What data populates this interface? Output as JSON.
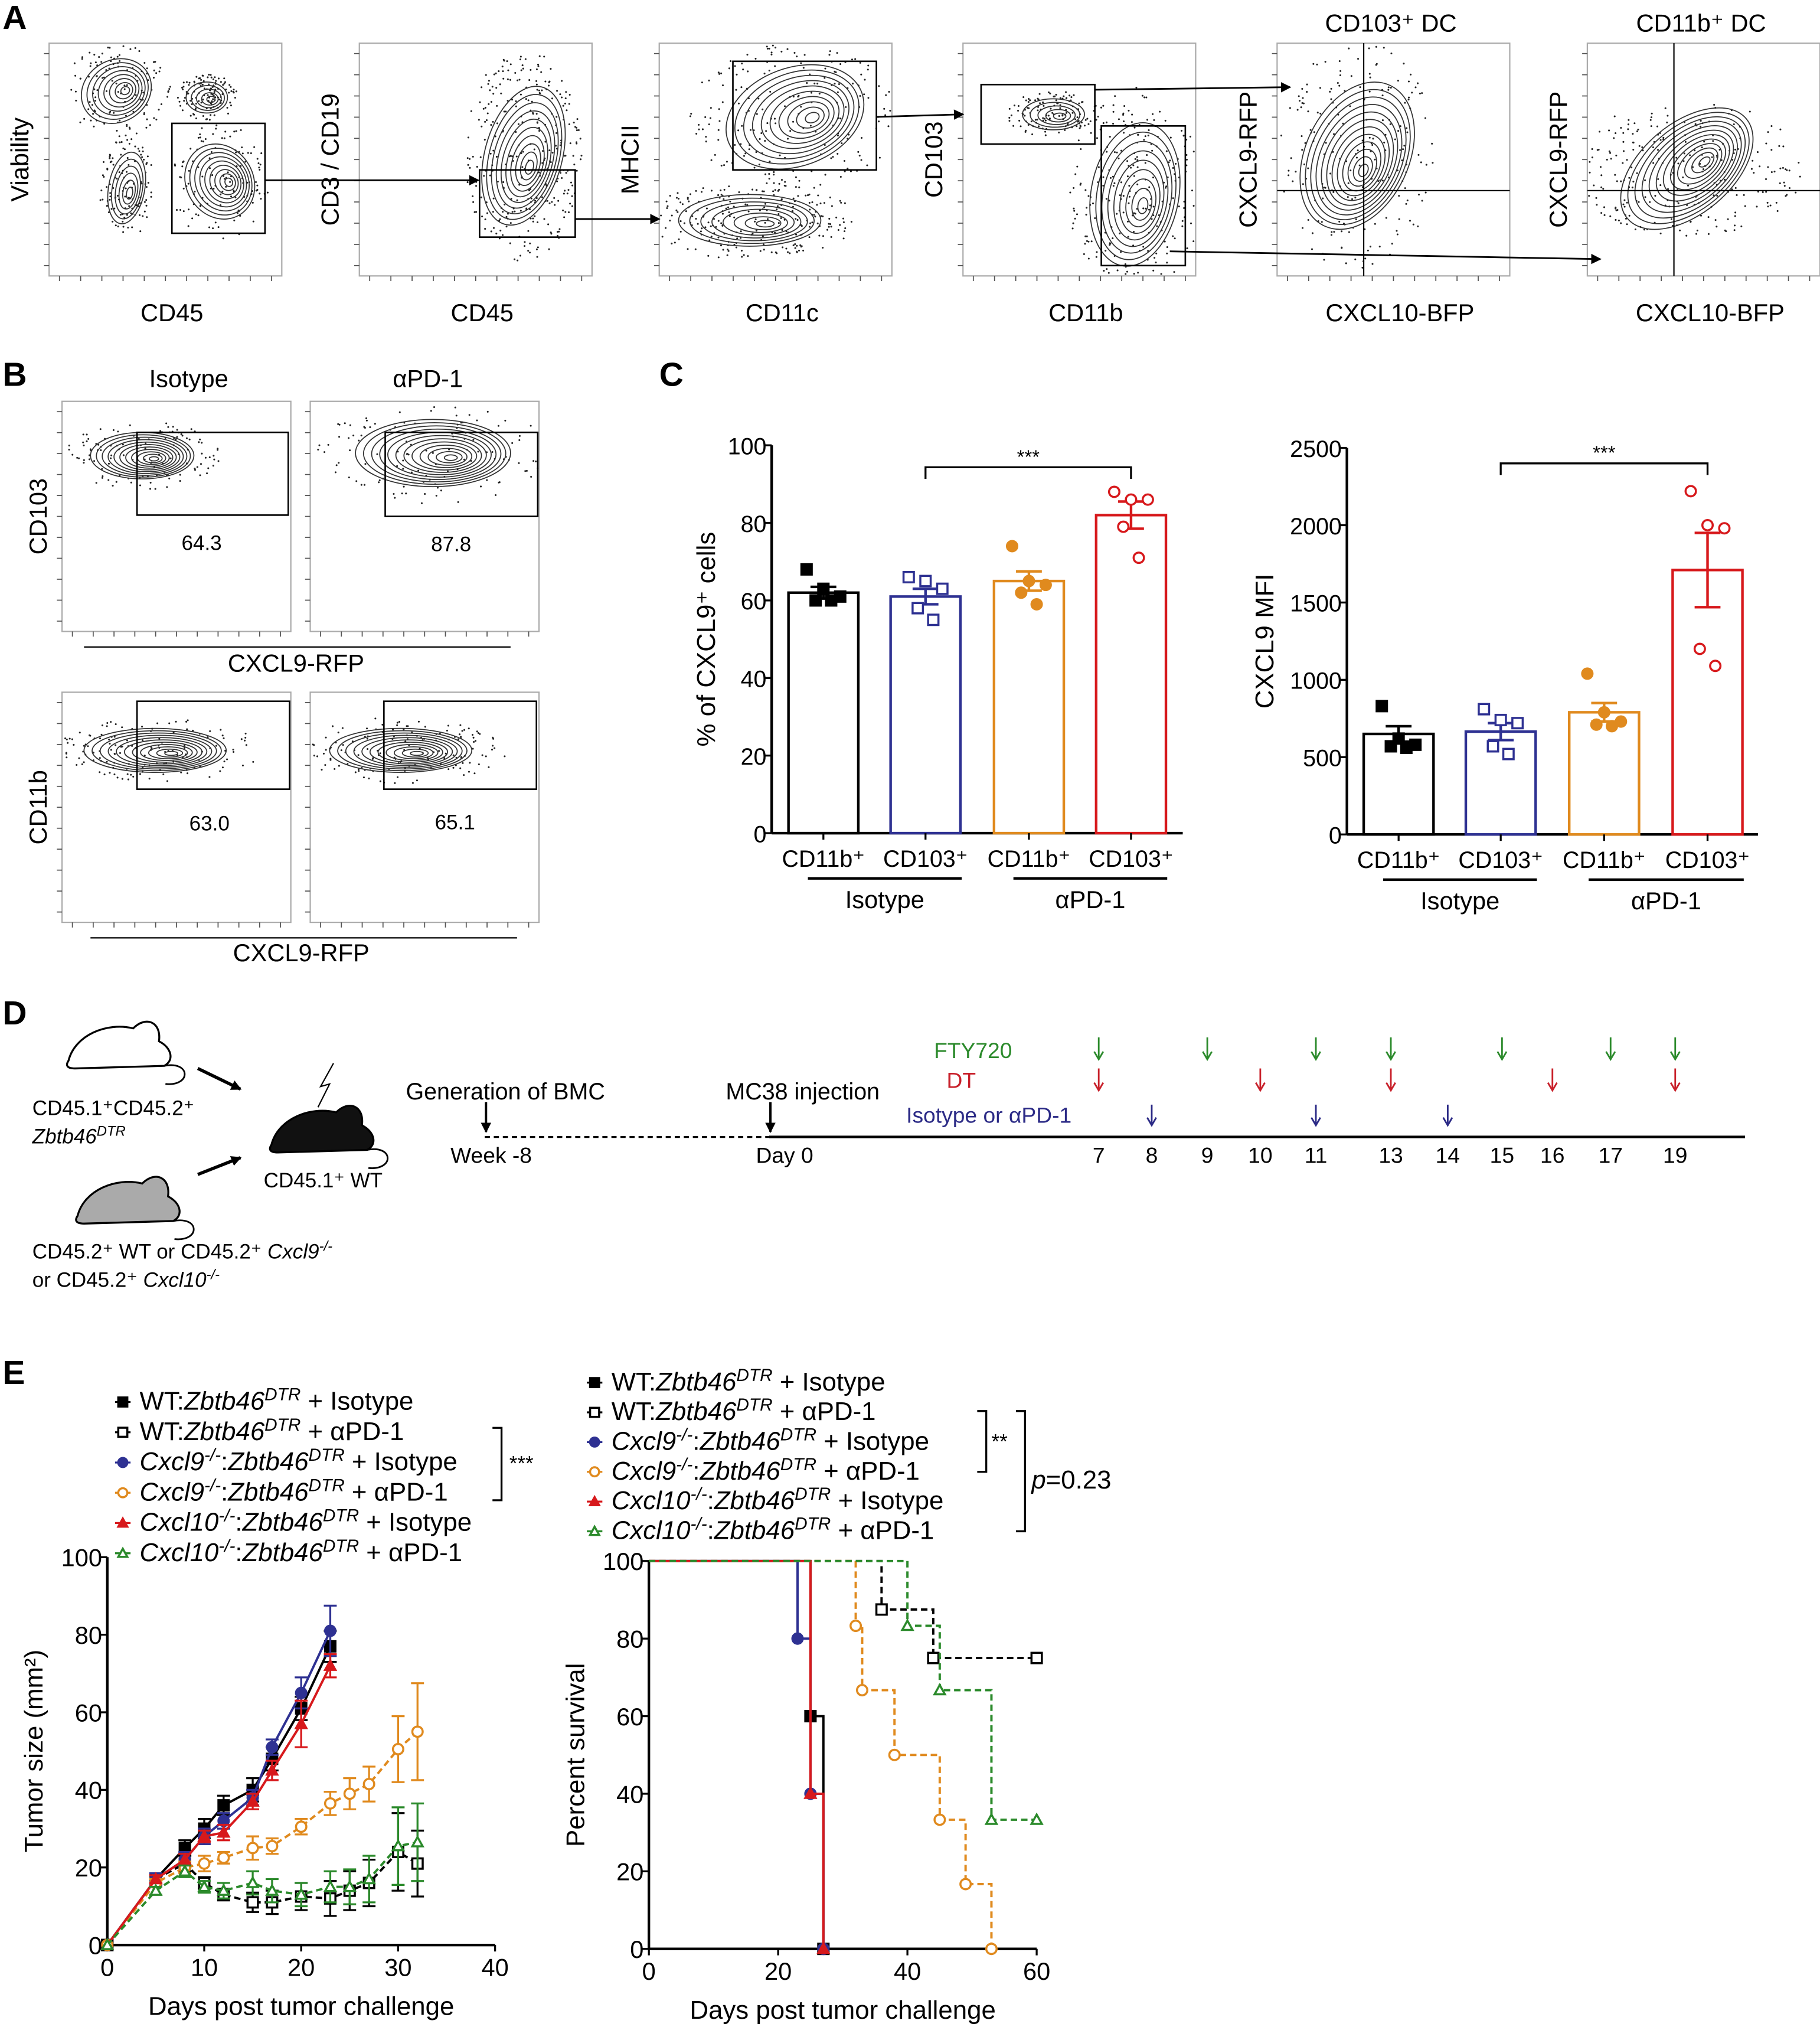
{
  "panel_labels": {
    "a": "A",
    "b": "B",
    "c": "C",
    "d": "D",
    "e": "E"
  },
  "panel_a": {
    "plots": [
      {
        "title": "",
        "ylabel": "Viability",
        "xlabel": "CD45"
      },
      {
        "title": "",
        "ylabel": "CD3 / CD19",
        "xlabel": "CD45"
      },
      {
        "title": "",
        "ylabel": "MHCII",
        "xlabel": "CD11c"
      },
      {
        "title": "",
        "ylabel": "CD103",
        "xlabel": "CD11b"
      },
      {
        "title": "CD103⁺ DC",
        "ylabel": "CXCL9-RFP",
        "xlabel": "CXCL10-BFP"
      },
      {
        "title": "CD11b⁺ DC",
        "ylabel": "CXCL9-RFP",
        "xlabel": "CXCL10-BFP"
      }
    ]
  },
  "panel_b": {
    "col_titles": [
      "Isotype",
      "αPD-1"
    ],
    "rows": [
      {
        "ylabel": "CD103",
        "xlabel": "CXCL9-RFP",
        "gate_percents": [
          "64.3",
          "87.8"
        ]
      },
      {
        "ylabel": "CD11b",
        "xlabel": "CXCL9-RFP",
        "gate_percents": [
          "63.0",
          "65.1"
        ]
      }
    ]
  },
  "panel_d": {
    "donor1": [
      {
        "t": "CD45.1⁺CD45.2⁺",
        "style": ""
      }
    ],
    "donor1_genotype": [
      {
        "t": "Zbtb46",
        "style": "i"
      },
      {
        "t": "DTR",
        "style": "sup"
      }
    ],
    "recipient": [
      {
        "t": "CD45.1⁺ WT",
        "style": ""
      }
    ],
    "donor2_line1": [
      {
        "t": "CD45.2⁺ WT or CD45.2⁺ ",
        "style": ""
      },
      {
        "t": "Cxcl9",
        "style": "i"
      },
      {
        "t": "-/-",
        "style": "sup"
      }
    ],
    "donor2_line2": [
      {
        "t": "or CD45.2⁺ ",
        "style": ""
      },
      {
        "t": "Cxcl10",
        "style": "i"
      },
      {
        "t": "-/-",
        "style": "sup"
      }
    ],
    "events": [
      {
        "label": "Generation of BMC",
        "tick": "Week -8"
      },
      {
        "label": "MC38 injection",
        "tick": "Day 0"
      }
    ],
    "days": [
      "7",
      "8",
      "9",
      "10",
      "11",
      "13",
      "14",
      "15",
      "16",
      "17",
      "19"
    ],
    "treatments": [
      {
        "label": "FTY720",
        "color": "#2b8a2b",
        "days": [
          7,
          9,
          11,
          13,
          15,
          17,
          19
        ]
      },
      {
        "label": "DT",
        "color": "#c8202a",
        "days": [
          7,
          10,
          13,
          16,
          19
        ]
      },
      {
        "label": "Isotype or αPD-1",
        "color": "#2b2a86",
        "days": [
          8,
          11,
          14
        ]
      }
    ]
  },
  "chart_data": [
    {
      "panel": "C",
      "type": "bar",
      "title": "",
      "ylabel": "% of CXCL9⁺ cells",
      "ylim": [
        0,
        100
      ],
      "yticks": [
        "0",
        "20",
        "40",
        "60",
        "80",
        "100"
      ],
      "categories": [
        "CD11b⁺",
        "CD103⁺",
        "CD11b⁺",
        "CD103⁺"
      ],
      "groups": [
        "Isotype",
        "αPD-1"
      ],
      "values": [
        62,
        61,
        65,
        82
      ],
      "sem": [
        1.5,
        2,
        2.5,
        3.5
      ],
      "points": [
        [
          68,
          63,
          61,
          60,
          60
        ],
        [
          66,
          65,
          63,
          58,
          55
        ],
        [
          74,
          65,
          64,
          62,
          59
        ],
        [
          88,
          86,
          86,
          79,
          71
        ]
      ],
      "colors": [
        "#000000",
        "#2e3192",
        "#e08a1e",
        "#d7191c"
      ],
      "markers": [
        "square-filled",
        "square-open",
        "circle-filled",
        "circle-open"
      ],
      "significance": {
        "from": 1,
        "to": 3,
        "label": "***"
      }
    },
    {
      "panel": "C",
      "type": "bar",
      "title": "",
      "ylabel": "CXCL9 MFI",
      "ylim": [
        0,
        2500
      ],
      "yticks": [
        "0",
        "500",
        "1000",
        "1500",
        "2000",
        "2500"
      ],
      "categories": [
        "CD11b⁺",
        "CD103⁺",
        "CD11b⁺",
        "CD103⁺"
      ],
      "groups": [
        "Isotype",
        "αPD-1"
      ],
      "values": [
        650,
        665,
        790,
        1710
      ],
      "sem": [
        50,
        55,
        60,
        240
      ],
      "points": [
        [
          830,
          620,
          580,
          570,
          560
        ],
        [
          810,
          740,
          720,
          570,
          520
        ],
        [
          1040,
          790,
          730,
          710,
          700
        ],
        [
          2220,
          2000,
          1980,
          1200,
          1090
        ]
      ],
      "colors": [
        "#000000",
        "#2e3192",
        "#e08a1e",
        "#d7191c"
      ],
      "markers": [
        "square-filled",
        "square-open",
        "circle-filled",
        "circle-open"
      ],
      "significance": {
        "from": 1,
        "to": 3,
        "label": "***"
      }
    },
    {
      "panel": "E",
      "type": "line",
      "title": "",
      "xlabel": "Days post tumor challenge",
      "ylabel": "Tumor size (mm²)",
      "xlim": [
        0,
        40
      ],
      "ylim": [
        0,
        100
      ],
      "xticks": [
        "0",
        "10",
        "20",
        "30",
        "40"
      ],
      "yticks": [
        "0",
        "20",
        "40",
        "60",
        "80",
        "100"
      ],
      "significance": {
        "label": "***",
        "from_series": 1,
        "to_series": 3
      },
      "series": [
        {
          "name": [
            {
              "t": "WT:",
              "style": ""
            },
            {
              "t": "Zbtb46",
              "style": "i"
            },
            {
              "t": "DTR",
              "style": "sup"
            },
            {
              "t": " + Isotype",
              "style": ""
            }
          ],
          "color": "#000000",
          "marker": "square-filled",
          "dashed": false,
          "x": [
            0,
            5,
            8,
            10,
            12,
            15,
            17,
            20,
            23
          ],
          "y": [
            0,
            17,
            25,
            30,
            36,
            40,
            48,
            61,
            77
          ],
          "sem": [
            0,
            1,
            2,
            2.5,
            2.5,
            3,
            3,
            3,
            4
          ]
        },
        {
          "name": [
            {
              "t": "WT:",
              "style": ""
            },
            {
              "t": "Zbtb46",
              "style": "i"
            },
            {
              "t": "DTR",
              "style": "sup"
            },
            {
              "t": " + αPD-1",
              "style": ""
            }
          ],
          "color": "#000000",
          "marker": "square-open",
          "dashed": true,
          "x": [
            0,
            5,
            8,
            10,
            12,
            15,
            17,
            20,
            23,
            25,
            27,
            30,
            32
          ],
          "y": [
            0,
            17,
            21,
            16,
            13,
            11,
            11,
            12.5,
            12,
            14,
            16,
            24,
            21
          ],
          "sem": [
            0,
            1,
            2,
            1.5,
            1.5,
            2.5,
            3,
            3.5,
            4.5,
            5,
            6,
            10,
            8.5
          ]
        },
        {
          "name": [
            {
              "t": "Cxcl9",
              "style": "i"
            },
            {
              "t": "-/-",
              "style": "sup"
            },
            {
              "t": ":",
              "style": ""
            },
            {
              "t": "Zbtb46",
              "style": "i"
            },
            {
              "t": "DTR",
              "style": "sup"
            },
            {
              "t": " + Isotype",
              "style": ""
            }
          ],
          "color": "#2e3192",
          "marker": "circle-filled",
          "dashed": false,
          "x": [
            0,
            5,
            8,
            10,
            12,
            15,
            17,
            20,
            23
          ],
          "y": [
            0,
            17,
            22,
            28,
            32,
            38,
            51,
            65,
            81
          ],
          "sem": [
            0,
            1.5,
            2,
            2,
            2,
            2,
            2,
            4,
            6.5
          ]
        },
        {
          "name": [
            {
              "t": "Cxcl9",
              "style": "i"
            },
            {
              "t": "-/-",
              "style": "sup"
            },
            {
              "t": ":",
              "style": ""
            },
            {
              "t": "Zbtb46",
              "style": "i"
            },
            {
              "t": "DTR",
              "style": "sup"
            },
            {
              "t": " + αPD-1",
              "style": ""
            }
          ],
          "color": "#e08a1e",
          "marker": "circle-open",
          "dashed": true,
          "x": [
            0,
            5,
            8,
            10,
            12,
            15,
            17,
            20,
            23,
            25,
            27,
            30,
            32
          ],
          "y": [
            0,
            16,
            20,
            21,
            22.5,
            25,
            25.5,
            30.5,
            36.5,
            39,
            41.5,
            50.5,
            55
          ],
          "sem": [
            0,
            1,
            1.5,
            2,
            1.5,
            3,
            2,
            2,
            3,
            4,
            4.5,
            8.5,
            12.5
          ]
        },
        {
          "name": [
            {
              "t": "Cxcl10",
              "style": "i"
            },
            {
              "t": "-/-",
              "style": "sup"
            },
            {
              "t": ":",
              "style": ""
            },
            {
              "t": "Zbtb46",
              "style": "i"
            },
            {
              "t": "DTR",
              "style": "sup"
            },
            {
              "t": " + Isotype",
              "style": ""
            }
          ],
          "color": "#d7191c",
          "marker": "triangle-filled",
          "dashed": false,
          "x": [
            0,
            5,
            8,
            10,
            12,
            15,
            17,
            20,
            23
          ],
          "y": [
            0,
            17,
            22,
            28,
            29,
            37,
            45,
            57,
            72
          ],
          "sem": [
            0,
            1,
            1.5,
            1.5,
            2,
            2,
            2.5,
            6,
            3
          ]
        },
        {
          "name": [
            {
              "t": "Cxcl10",
              "style": "i"
            },
            {
              "t": "-/-",
              "style": "sup"
            },
            {
              "t": ":",
              "style": ""
            },
            {
              "t": "Zbtb46",
              "style": "i"
            },
            {
              "t": "DTR",
              "style": "sup"
            },
            {
              "t": " + αPD-1",
              "style": ""
            }
          ],
          "color": "#2b8a2b",
          "marker": "triangle-open",
          "dashed": true,
          "x": [
            0,
            5,
            8,
            10,
            12,
            15,
            17,
            20,
            23,
            25,
            27,
            30,
            32
          ],
          "y": [
            0,
            14,
            19,
            15,
            14,
            16,
            14,
            13,
            15,
            15,
            17,
            25.5,
            26.5
          ],
          "sem": [
            0,
            1,
            1.5,
            1.5,
            2,
            3,
            3,
            3,
            4,
            4.5,
            6,
            10,
            10
          ]
        }
      ]
    },
    {
      "panel": "E",
      "type": "line",
      "subtype": "survival-step",
      "title": "",
      "xlabel": "Days post tumor challenge",
      "ylabel": "Percent survival",
      "xlim": [
        0,
        60
      ],
      "ylim": [
        0,
        100
      ],
      "xticks": [
        "0",
        "20",
        "40",
        "60"
      ],
      "yticks": [
        "0",
        "20",
        "40",
        "60",
        "80",
        "100"
      ],
      "significance": [
        {
          "label": [
            {
              "t": "**",
              "style": ""
            }
          ],
          "from_series": 1,
          "to_series": 3
        },
        {
          "label": [
            {
              "t": "p",
              "style": "i"
            },
            {
              "t": "=0.23",
              "style": ""
            }
          ],
          "from_series": 1,
          "to_series": 5
        }
      ],
      "series": [
        {
          "name": [
            {
              "t": "WT:",
              "style": ""
            },
            {
              "t": "Zbtb46",
              "style": "i"
            },
            {
              "t": "DTR",
              "style": "sup"
            },
            {
              "t": " + Isotype",
              "style": ""
            }
          ],
          "color": "#000000",
          "marker": "square-filled",
          "dashed": false,
          "x": [
            25,
            27
          ],
          "y": [
            60,
            0
          ]
        },
        {
          "name": [
            {
              "t": "WT:",
              "style": ""
            },
            {
              "t": "Zbtb46",
              "style": "i"
            },
            {
              "t": "DTR",
              "style": "sup"
            },
            {
              "t": " + αPD-1",
              "style": ""
            }
          ],
          "color": "#000000",
          "marker": "square-open",
          "dashed": true,
          "x": [
            36,
            44,
            60
          ],
          "y": [
            87.5,
            75,
            75
          ]
        },
        {
          "name": [
            {
              "t": "Cxcl9",
              "style": "i"
            },
            {
              "t": "-/-",
              "style": "sup"
            },
            {
              "t": ":",
              "style": ""
            },
            {
              "t": "Zbtb46",
              "style": "i"
            },
            {
              "t": "DTR",
              "style": "sup"
            },
            {
              "t": " + Isotype",
              "style": ""
            }
          ],
          "color": "#2e3192",
          "marker": "circle-filled",
          "dashed": false,
          "x": [
            23,
            25,
            27
          ],
          "y": [
            80,
            40,
            0
          ]
        },
        {
          "name": [
            {
              "t": "Cxcl9",
              "style": "i"
            },
            {
              "t": "-/-",
              "style": "sup"
            },
            {
              "t": ":",
              "style": ""
            },
            {
              "t": "Zbtb46",
              "style": "i"
            },
            {
              "t": "DTR",
              "style": "sup"
            },
            {
              "t": " + αPD-1",
              "style": ""
            }
          ],
          "color": "#e08a1e",
          "marker": "circle-open",
          "dashed": true,
          "x": [
            32,
            33,
            38,
            45,
            49,
            53
          ],
          "y": [
            83.3,
            66.7,
            50,
            33.3,
            16.7,
            0
          ]
        },
        {
          "name": [
            {
              "t": "Cxcl10",
              "style": "i"
            },
            {
              "t": "-/-",
              "style": "sup"
            },
            {
              "t": ":",
              "style": ""
            },
            {
              "t": "Zbtb46",
              "style": "i"
            },
            {
              "t": "DTR",
              "style": "sup"
            },
            {
              "t": " + Isotype",
              "style": ""
            }
          ],
          "color": "#d7191c",
          "marker": "triangle-filled",
          "dashed": false,
          "x": [
            25,
            27
          ],
          "y": [
            40,
            0
          ]
        },
        {
          "name": [
            {
              "t": "Cxcl10",
              "style": "i"
            },
            {
              "t": "-/-",
              "style": "sup"
            },
            {
              "t": ":",
              "style": ""
            },
            {
              "t": "Zbtb46",
              "style": "i"
            },
            {
              "t": "DTR",
              "style": "sup"
            },
            {
              "t": " + αPD-1",
              "style": ""
            }
          ],
          "color": "#2b8a2b",
          "marker": "triangle-open",
          "dashed": true,
          "x": [
            40,
            45,
            53,
            60
          ],
          "y": [
            83.3,
            66.7,
            33.3,
            33.3
          ]
        }
      ]
    }
  ]
}
